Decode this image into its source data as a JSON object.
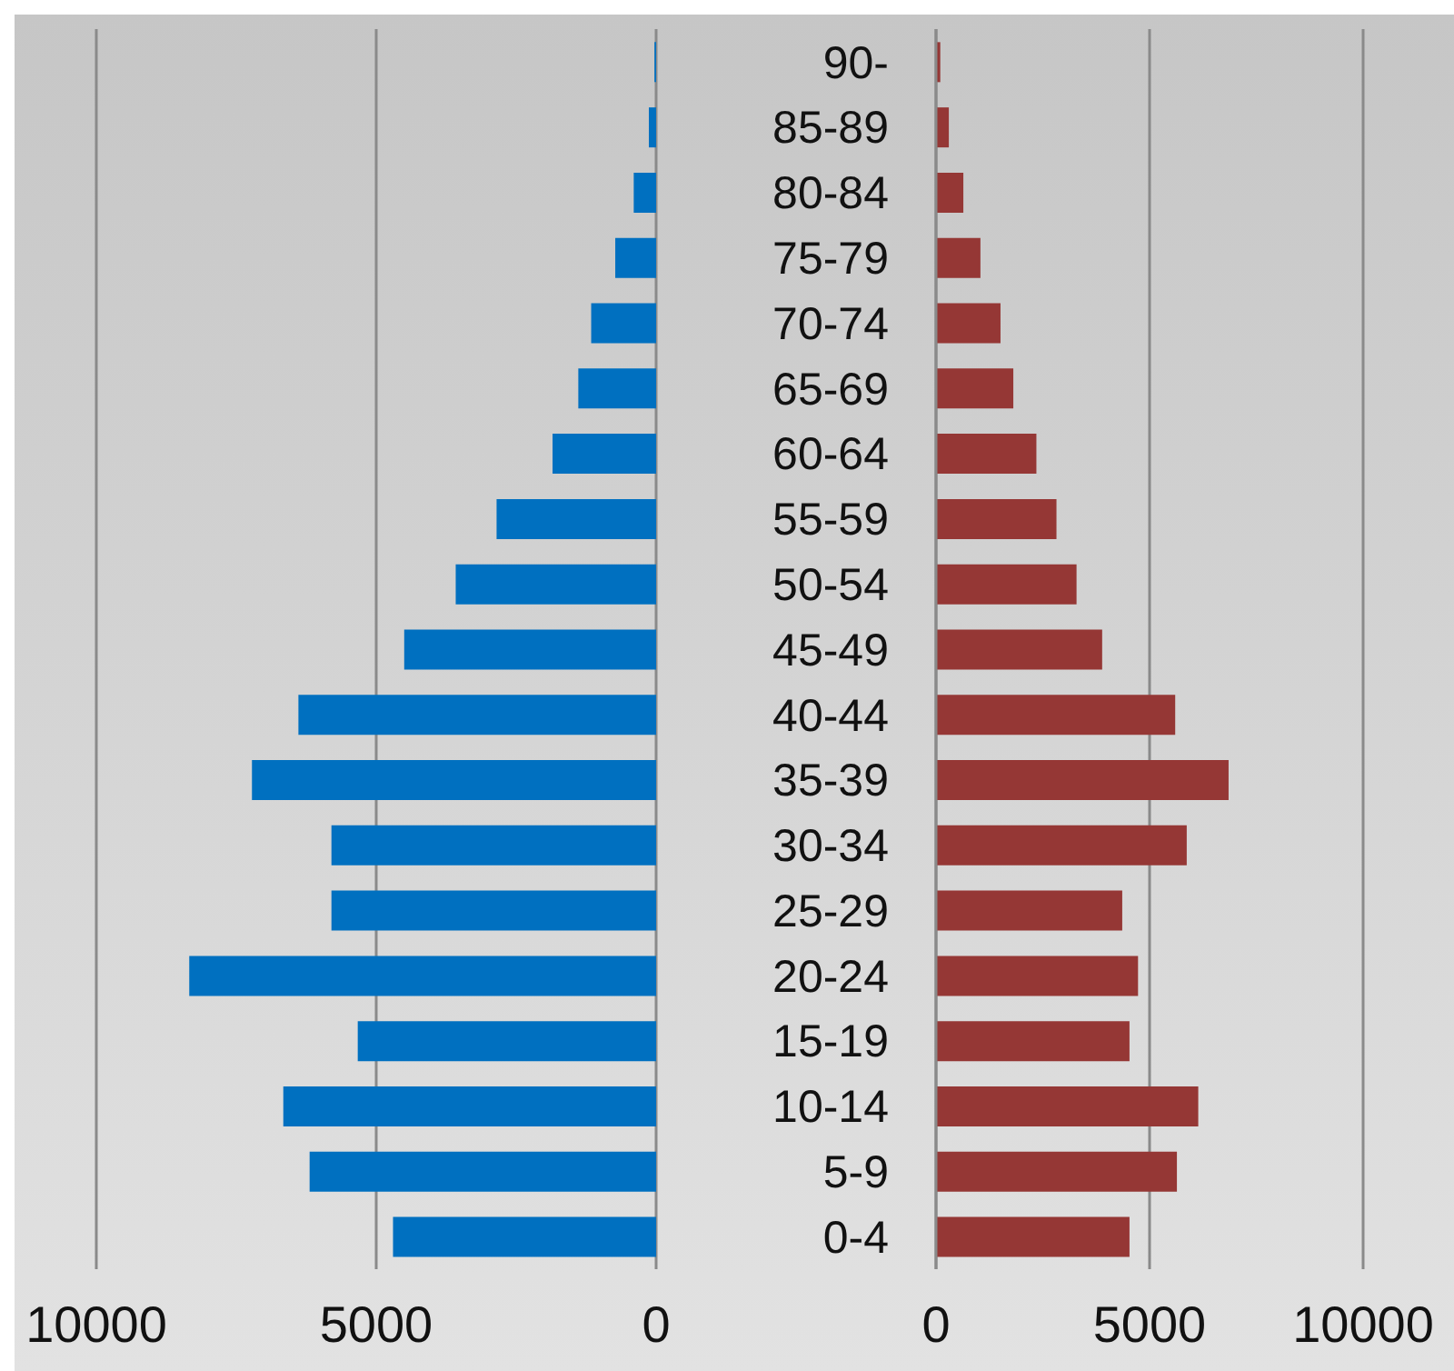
{
  "chart_data": [
    {
      "type": "bar",
      "orientation": "horizontal",
      "categories": [
        null,
        null,
        null,
        null,
        null,
        null,
        null,
        null,
        null,
        null,
        null,
        null,
        null,
        null,
        null,
        null,
        null,
        null,
        null
      ],
      "values": [
        30,
        130,
        400,
        730,
        1160,
        1390,
        1850,
        2850,
        3580,
        4500,
        6390,
        7220,
        5800,
        5800,
        8340,
        5330,
        6660,
        6190,
        4700
      ],
      "color": "#0070c0",
      "xlim": [
        10000,
        0
      ],
      "xticks": [
        10000,
        5000,
        0
      ],
      "grid": "x",
      "tick_labels": "x"
    },
    {
      "type": "bar",
      "orientation": "horizontal",
      "categories": [
        "90-",
        "85-89",
        "80-84",
        "75-79",
        "70-74",
        "65-69",
        "60-64",
        "55-59",
        "50-54",
        "45-49",
        "40-44",
        "35-39",
        "30-34",
        "25-29",
        "20-24",
        "15-19",
        "10-14",
        "5-9",
        "0-4"
      ],
      "values": [
        100,
        300,
        640,
        1040,
        1510,
        1810,
        2350,
        2820,
        3290,
        3890,
        5600,
        6850,
        5870,
        4360,
        4730,
        4530,
        6140,
        5640,
        4530
      ],
      "color": "#953735",
      "xlim": [
        0,
        10000
      ],
      "xticks": [
        0,
        5000,
        10000
      ],
      "grid": "x"
    }
  ]
}
